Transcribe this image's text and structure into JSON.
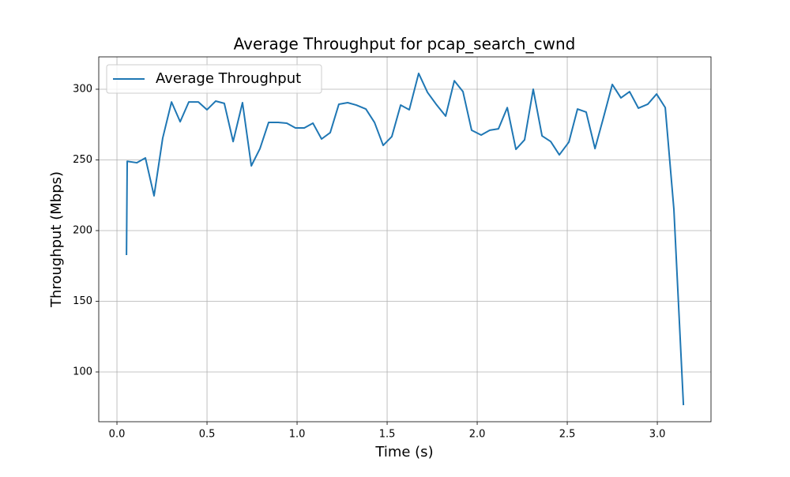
{
  "chart_data": {
    "type": "line",
    "title": "Average Throughput for pcap_search_cwnd",
    "x_label": "Time (s)",
    "y_label": "Throughput (Mbps)",
    "x": [
      0.053,
      0.057,
      0.11,
      0.158,
      0.206,
      0.254,
      0.303,
      0.351,
      0.399,
      0.452,
      0.5,
      0.548,
      0.596,
      0.645,
      0.697,
      0.746,
      0.794,
      0.842,
      0.895,
      0.943,
      0.991,
      1.04,
      1.088,
      1.136,
      1.184,
      1.232,
      1.281,
      1.329,
      1.382,
      1.43,
      1.478,
      1.526,
      1.575,
      1.623,
      1.675,
      1.724,
      1.772,
      1.825,
      1.873,
      1.921,
      1.969,
      2.022,
      2.07,
      2.118,
      2.167,
      2.215,
      2.263,
      2.311,
      2.36,
      2.408,
      2.456,
      2.509,
      2.557,
      2.605,
      2.654,
      2.702,
      2.75,
      2.798,
      2.846,
      2.895,
      2.947,
      2.996,
      3.044,
      3.092,
      3.145
    ],
    "series": [
      {
        "name": "Average Throughput",
        "color": "#1f77b4",
        "values": [
          182.7,
          249,
          248,
          251.4,
          224.6,
          265.4,
          291,
          277,
          291,
          291,
          285.5,
          291.6,
          290,
          263,
          290.5,
          245.8,
          258,
          276.5,
          276.5,
          276,
          272.6,
          272.6,
          276,
          264.8,
          269.3,
          289.4,
          290.5,
          288.8,
          286,
          276.5,
          260.3,
          266.5,
          288.8,
          285.5,
          311.2,
          297.8,
          289.4,
          281,
          306,
          298.3,
          271,
          267.6,
          271,
          272,
          287,
          257.5,
          264.2,
          300,
          267,
          263,
          253.6,
          262.6,
          286,
          283.8,
          258,
          280.4,
          303.4,
          293.9,
          298.3,
          286.6,
          289.4,
          296.6,
          287,
          215,
          76.5
        ]
      }
    ],
    "xlim": [
      -0.101,
      3.298
    ],
    "ylim": [
      64.8,
      322.9
    ],
    "xticks": [
      {
        "value": 0,
        "label": "0.0"
      },
      0.5,
      {
        "value": 1,
        "label": "1.0"
      },
      1.5,
      {
        "value": 2,
        "label": "2.0"
      },
      2.5,
      {
        "value": 3,
        "label": "3.0"
      }
    ],
    "yticks": [
      100,
      150,
      200,
      250,
      300
    ],
    "grid": true,
    "legend": "upper-left"
  }
}
